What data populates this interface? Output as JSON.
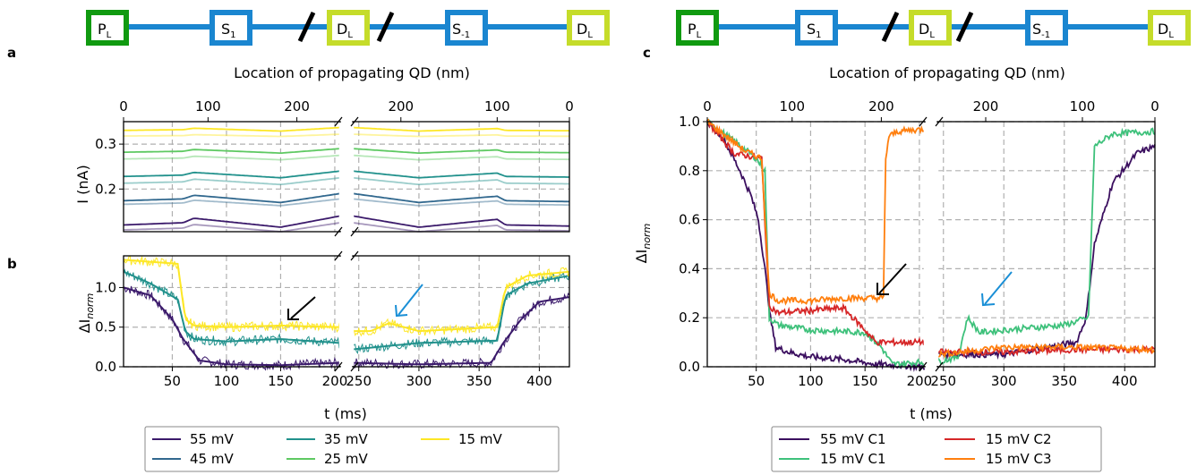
{
  "colors": {
    "c55": "#3b1a6b",
    "c45": "#31688e",
    "c35": "#21918c",
    "c25": "#5ec962",
    "c15": "#fde725",
    "c_c1_55": "#3b0f5f",
    "c_c1_15": "#3ec17b",
    "c_c2_15": "#d62728",
    "c_c3_15": "#ff7f0e",
    "wire": "#1a86d0",
    "pl": "#109a10",
    "s": "#1a86d0",
    "dl": "#c5dc2a",
    "arrow_black": "#000000",
    "arrow_blue": "#1a8fd6"
  },
  "schematic": {
    "left": {
      "pl": "P_L",
      "s1": "S_1",
      "dl1": "D_L",
      "sm1": "S_-1",
      "dl2": "D_L"
    },
    "right": {
      "pl": "P_L",
      "s1": "S_1",
      "dl1": "D_L",
      "sm1": "S_-1",
      "dl2": "D_L"
    }
  },
  "panels": {
    "a": "a",
    "b": "b",
    "c": "c"
  },
  "chart_data": [
    {
      "panel": "a",
      "type": "line",
      "top_xlabel": "Location of propagating QD (nm)",
      "top_ticks_left": [
        "0",
        "100",
        "200"
      ],
      "top_ticks_right": [
        "200",
        "100",
        "0"
      ],
      "ylabel": "I (nA)",
      "yticks": [
        "0.2",
        "0.3"
      ],
      "ylim": [
        0.105,
        0.35
      ],
      "xlim": [
        5,
        425
      ],
      "axis_break": [
        205,
        245
      ],
      "series": [
        {
          "name": "55 mV",
          "level": 0.14,
          "dip": 0.025,
          "color_key": "c55"
        },
        {
          "name": "55 mV",
          "level": 0.125,
          "dip": 0.02,
          "color_key": "c55",
          "faded": true
        },
        {
          "name": "45 mV",
          "level": 0.19,
          "dip": 0.02,
          "color_key": "c45"
        },
        {
          "name": "45 mV",
          "level": 0.178,
          "dip": 0.015,
          "color_key": "c45",
          "faded": true
        },
        {
          "name": "35 mV",
          "level": 0.24,
          "dip": 0.015,
          "color_key": "c35"
        },
        {
          "name": "35 mV",
          "level": 0.225,
          "dip": 0.015,
          "color_key": "c35",
          "faded": true
        },
        {
          "name": "25 mV",
          "level": 0.29,
          "dip": 0.01,
          "color_key": "c25"
        },
        {
          "name": "25 mV",
          "level": 0.275,
          "dip": 0.01,
          "color_key": "c25",
          "faded": true
        },
        {
          "name": "15 mV",
          "level": 0.337,
          "dip": 0.008,
          "color_key": "c15"
        },
        {
          "name": "15 mV",
          "level": 0.322,
          "dip": 0.005,
          "color_key": "c15",
          "faded": true
        }
      ]
    },
    {
      "panel": "b",
      "type": "line",
      "xlabel": "t (ms)",
      "xticks": [
        "50",
        "100",
        "150",
        "200",
        "250",
        "300",
        "350",
        "400"
      ],
      "ylabel": "ΔI_norm",
      "yticks": [
        "0.0",
        "0.5",
        "1.0"
      ],
      "ylim": [
        0,
        1.4
      ],
      "xlim": [
        5,
        425
      ],
      "axis_break": [
        205,
        245
      ],
      "series": [
        {
          "name": "55 mV",
          "color_key": "c55",
          "x": [
            5,
            30,
            50,
            60,
            75,
            100,
            150,
            205,
            245,
            300,
            360,
            370,
            385,
            400,
            425
          ],
          "y": [
            1.0,
            0.9,
            0.6,
            0.35,
            0.08,
            0.03,
            0.02,
            0.05,
            0.05,
            0.03,
            0.05,
            0.3,
            0.6,
            0.82,
            0.88
          ]
        },
        {
          "name": "35 mV",
          "color_key": "c35",
          "x": [
            5,
            30,
            55,
            62,
            70,
            100,
            150,
            205,
            245,
            300,
            365,
            372,
            390,
            425
          ],
          "y": [
            1.2,
            1.05,
            0.85,
            0.45,
            0.35,
            0.32,
            0.35,
            0.3,
            0.22,
            0.3,
            0.33,
            0.9,
            1.05,
            1.15
          ]
        },
        {
          "name": "15 mV",
          "color_key": "c15",
          "x": [
            5,
            55,
            62,
            70,
            100,
            150,
            205,
            245,
            260,
            275,
            300,
            365,
            372,
            390,
            425
          ],
          "y": [
            1.35,
            1.3,
            0.6,
            0.52,
            0.5,
            0.52,
            0.5,
            0.45,
            0.45,
            0.55,
            0.45,
            0.5,
            1.0,
            1.15,
            1.2
          ]
        }
      ]
    },
    {
      "panel": "c",
      "type": "line",
      "top_xlabel": "Location of propagating QD (nm)",
      "top_ticks_left": [
        "0",
        "100",
        "200"
      ],
      "top_ticks_right": [
        "200",
        "100",
        "0"
      ],
      "xlabel": "t (ms)",
      "xticks": [
        "50",
        "100",
        "150",
        "200",
        "250",
        "300",
        "350",
        "400"
      ],
      "ylabel": "ΔI_norm",
      "yticks": [
        "0.0",
        "0.2",
        "0.4",
        "0.6",
        "0.8",
        "1.0"
      ],
      "ylim": [
        0,
        1.0
      ],
      "xlim": [
        5,
        425
      ],
      "axis_break": [
        205,
        245
      ],
      "legend": [
        {
          "name": "55 mV C1",
          "color_key": "c_c1_55"
        },
        {
          "name": "15 mV C1",
          "color_key": "c_c1_15"
        },
        {
          "name": "15 mV C2",
          "color_key": "c_c2_15"
        },
        {
          "name": "15 mV C3",
          "color_key": "c_c3_15"
        }
      ],
      "series": [
        {
          "name": "55 mV C1",
          "color_key": "c_c1_55",
          "x": [
            5,
            20,
            35,
            45,
            52,
            58,
            63,
            68,
            80,
            100,
            130,
            160,
            205,
            245,
            300,
            360,
            368,
            375,
            390,
            410,
            425
          ],
          "y": [
            1.0,
            0.93,
            0.8,
            0.7,
            0.6,
            0.4,
            0.2,
            0.08,
            0.06,
            0.04,
            0.03,
            0.01,
            0.0,
            0.05,
            0.05,
            0.1,
            0.2,
            0.5,
            0.75,
            0.87,
            0.9
          ]
        },
        {
          "name": "15 mV C1",
          "color_key": "c_c1_15",
          "x": [
            5,
            30,
            50,
            58,
            62,
            70,
            100,
            150,
            165,
            175,
            205,
            245,
            262,
            270,
            280,
            300,
            350,
            370,
            375,
            390,
            425
          ],
          "y": [
            1.0,
            0.92,
            0.85,
            0.8,
            0.2,
            0.17,
            0.15,
            0.14,
            0.08,
            0.01,
            0.02,
            0.02,
            0.04,
            0.2,
            0.14,
            0.15,
            0.17,
            0.2,
            0.9,
            0.95,
            0.96
          ]
        },
        {
          "name": "15 mV C2",
          "color_key": "c_c2_15",
          "x": [
            5,
            30,
            55,
            62,
            70,
            100,
            130,
            150,
            160,
            175,
            205,
            245,
            300,
            360,
            425
          ],
          "y": [
            1.0,
            0.87,
            0.85,
            0.25,
            0.22,
            0.23,
            0.24,
            0.15,
            0.1,
            0.1,
            0.1,
            0.06,
            0.06,
            0.07,
            0.07
          ]
        },
        {
          "name": "15 mV C3",
          "color_key": "c_c3_15",
          "x": [
            5,
            40,
            55,
            62,
            70,
            100,
            130,
            158,
            167,
            169,
            172,
            180,
            205,
            245,
            300,
            360,
            425
          ],
          "y": [
            1.0,
            0.88,
            0.85,
            0.3,
            0.27,
            0.27,
            0.28,
            0.28,
            0.28,
            0.85,
            0.94,
            0.96,
            0.97,
            0.05,
            0.08,
            0.08,
            0.07
          ]
        }
      ]
    }
  ],
  "legend_b": [
    {
      "name": "55 mV",
      "color_key": "c55"
    },
    {
      "name": "45 mV",
      "color_key": "c45"
    },
    {
      "name": "35 mV",
      "color_key": "c35"
    },
    {
      "name": "25 mV",
      "color_key": "c25"
    },
    {
      "name": "15 mV",
      "color_key": "c15"
    }
  ]
}
